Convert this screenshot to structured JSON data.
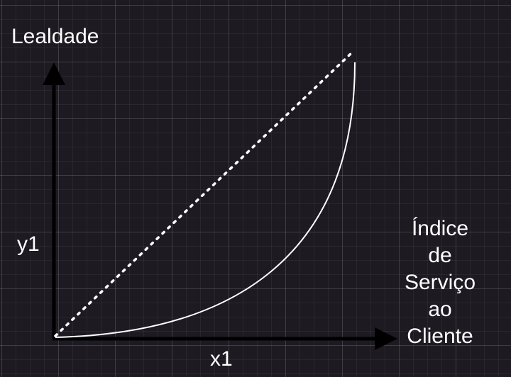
{
  "diagram": {
    "y_axis_title": "Lealdade",
    "y_axis_variable": "y1",
    "x_axis_variable": "x1",
    "x_axis_title_lines": [
      "Índice",
      "de",
      "Serviço",
      "ao",
      "Cliente"
    ],
    "colors": {
      "background": "#1d1a22",
      "foreground": "#ffffff",
      "axes": "#000000"
    },
    "curves": [
      {
        "style": "dotted",
        "shape": "linear"
      },
      {
        "style": "solid",
        "shape": "convex"
      }
    ]
  }
}
